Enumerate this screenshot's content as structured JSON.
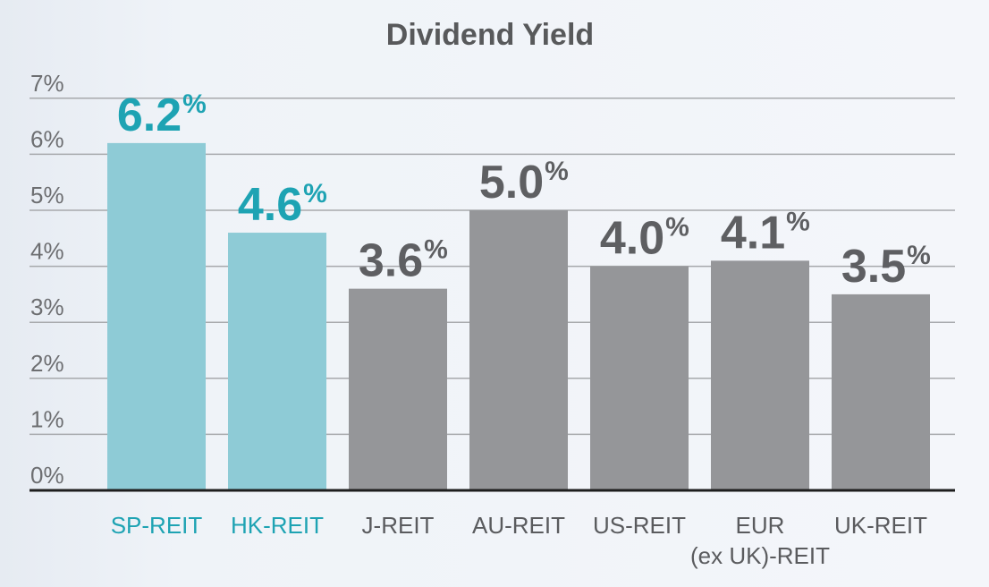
{
  "chart_data": {
    "type": "bar",
    "title": "Dividend Yield",
    "xlabel": "",
    "ylabel": "",
    "ylim": [
      0,
      7
    ],
    "y_ticks": [
      {
        "value": 0,
        "label": "0%"
      },
      {
        "value": 1,
        "label": "1%"
      },
      {
        "value": 2,
        "label": "2%"
      },
      {
        "value": 3,
        "label": "3%"
      },
      {
        "value": 4,
        "label": "4%"
      },
      {
        "value": 5,
        "label": "5%"
      },
      {
        "value": 6,
        "label": "6%"
      },
      {
        "value": 7,
        "label": "7%"
      }
    ],
    "grid": true,
    "legend": "none",
    "value_suffix": "%",
    "categories": [
      {
        "lines": [
          "SP-REIT"
        ]
      },
      {
        "lines": [
          "HK-REIT"
        ]
      },
      {
        "lines": [
          "J-REIT"
        ]
      },
      {
        "lines": [
          "AU-REIT"
        ]
      },
      {
        "lines": [
          "US-REIT"
        ]
      },
      {
        "lines": [
          "EUR",
          "(ex UK)-REIT"
        ]
      },
      {
        "lines": [
          "UK-REIT"
        ]
      }
    ],
    "values": [
      6.2,
      4.6,
      3.6,
      5.0,
      4.0,
      4.1,
      3.5
    ],
    "data_labels": [
      "6.2",
      "4.6",
      "3.6",
      "5.0",
      "4.0",
      "4.1",
      "3.5"
    ],
    "highlighted": [
      true,
      true,
      false,
      false,
      false,
      false,
      false
    ],
    "colors": {
      "highlight_bar": "#8ecbd6",
      "highlight_text": "#1ea3b3",
      "default_bar": "#959699",
      "default_value_text": "#5e5f62",
      "default_category_text": "#5a5b5e",
      "grid": "#a7a9ac",
      "axis": "#1e1e1e",
      "tick_text": "#6d6e71",
      "title_text": "#58595b"
    }
  }
}
